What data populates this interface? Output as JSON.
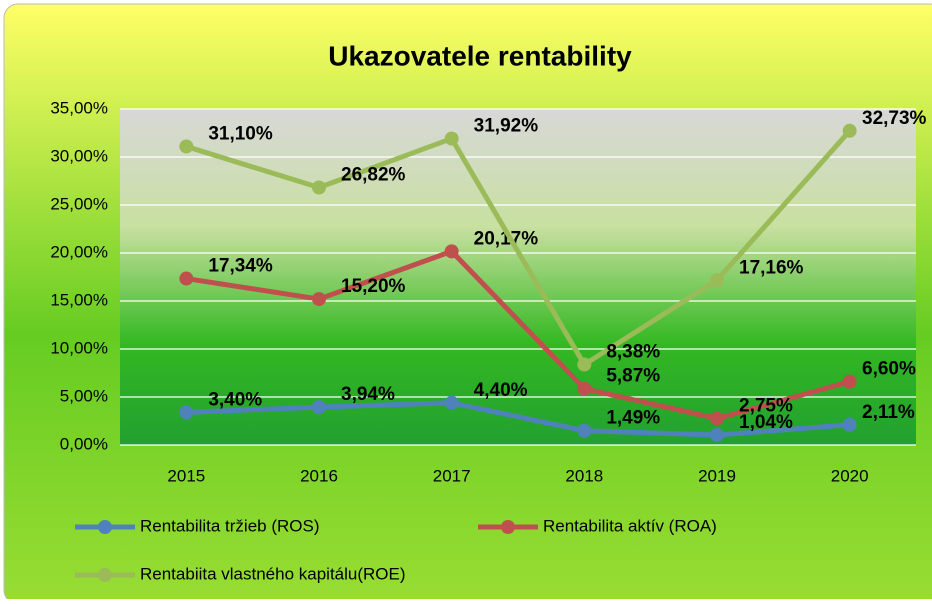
{
  "chart_data": {
    "type": "line",
    "title": "Ukazovatele rentability",
    "categories": [
      "2015",
      "2016",
      "2017",
      "2018",
      "2019",
      "2020"
    ],
    "series": [
      {
        "name": "Rentabilita tržieb (ROS)",
        "color": "#4f81bd",
        "values": [
          3.4,
          3.94,
          4.4,
          1.49,
          1.04,
          2.11
        ],
        "value_labels": [
          "3,40%",
          "3,94%",
          "4,40%",
          "1,49%",
          "1,04%",
          "2,11%"
        ]
      },
      {
        "name": "Rentabilita aktív (ROA)",
        "color": "#c0504d",
        "values": [
          17.34,
          15.2,
          20.17,
          5.87,
          2.75,
          6.6
        ],
        "value_labels": [
          "17,34%",
          "15,20%",
          "20,17%",
          "5,87%",
          "2,75%",
          "6,60%"
        ]
      },
      {
        "name": "Rentabiita vlastného kapitálu(ROE)",
        "color": "#9bbb59",
        "values": [
          31.1,
          26.82,
          31.92,
          8.38,
          17.16,
          32.73
        ],
        "value_labels": [
          "31,10%",
          "26,82%",
          "31,92%",
          "8,38%",
          "17,16%",
          "32,73%"
        ]
      }
    ],
    "ylim": [
      0,
      35
    ],
    "yticks": [
      {
        "value": 0,
        "label": "0,00%"
      },
      {
        "value": 5,
        "label": "5,00%"
      },
      {
        "value": 10,
        "label": "10,00%"
      },
      {
        "value": 15,
        "label": "15,00%"
      },
      {
        "value": 20,
        "label": "20,00%"
      },
      {
        "value": 25,
        "label": "25,00%"
      },
      {
        "value": 30,
        "label": "30,00%"
      },
      {
        "value": 35,
        "label": "35,00%"
      }
    ],
    "grid": true
  }
}
